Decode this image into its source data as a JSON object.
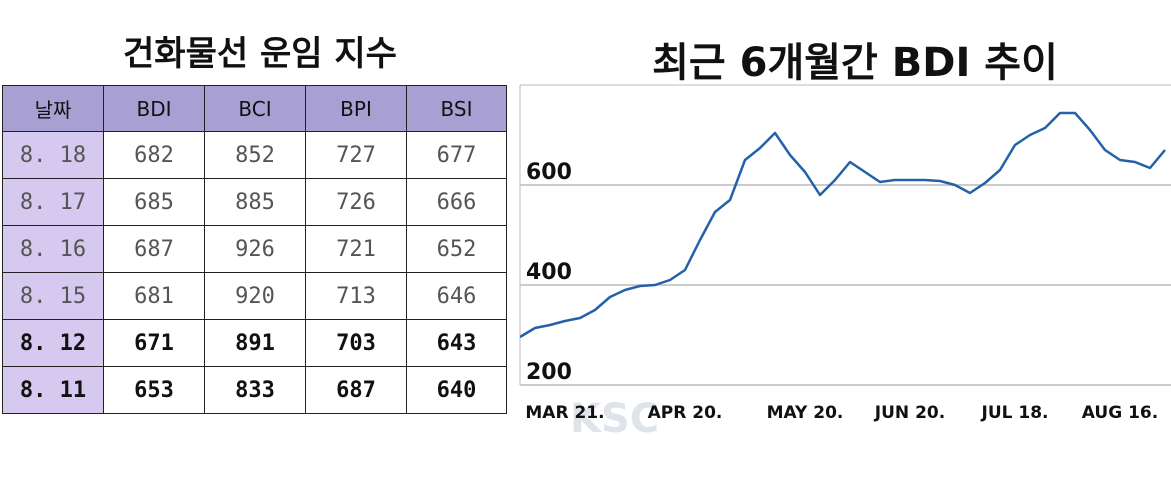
{
  "table": {
    "title": "건화물선 운임 지수",
    "header": [
      "날짜",
      "BDI",
      "BCI",
      "BPI",
      "BSI"
    ],
    "rows": [
      [
        "8. 18",
        682,
        852,
        727,
        677
      ],
      [
        "8. 17",
        685,
        885,
        726,
        666
      ],
      [
        "8. 16",
        687,
        926,
        721,
        652
      ],
      [
        "8. 15",
        681,
        920,
        713,
        646
      ],
      [
        "8. 12",
        671,
        891,
        703,
        643
      ],
      [
        "8. 11",
        653,
        833,
        687,
        640
      ]
    ]
  },
  "chart_data": {
    "type": "line",
    "title": "최근 6개월간 BDI 추이",
    "categories": [
      null,
      null,
      null,
      "MAR 21.",
      null,
      null,
      null,
      null,
      null,
      null,
      null,
      "APR 20.",
      null,
      null,
      null,
      null,
      null,
      null,
      null,
      "MAY 20.",
      null,
      null,
      null,
      null,
      null,
      null,
      "JUN 20.",
      null,
      null,
      null,
      null,
      null,
      null,
      "JUL 18.",
      null,
      null,
      null,
      null,
      null,
      null,
      "AUG 16.",
      null,
      null,
      null
    ],
    "series": [
      {
        "color": "#2461a8",
        "values": [
          296,
          314,
          320,
          328,
          334,
          350,
          376,
          390,
          398,
          400,
          410,
          430,
          490,
          546,
          570,
          650,
          674,
          704,
          660,
          626,
          580,
          610,
          646,
          626,
          606,
          610,
          610,
          610,
          608,
          600,
          584,
          604,
          630,
          680,
          700,
          714,
          744,
          744,
          710,
          670,
          650,
          646,
          634,
          670
        ]
      }
    ],
    "ylim": [
      200,
      800
    ],
    "yticks": [
      200,
      400,
      600
    ],
    "grid": true
  },
  "watermark": "KSC"
}
